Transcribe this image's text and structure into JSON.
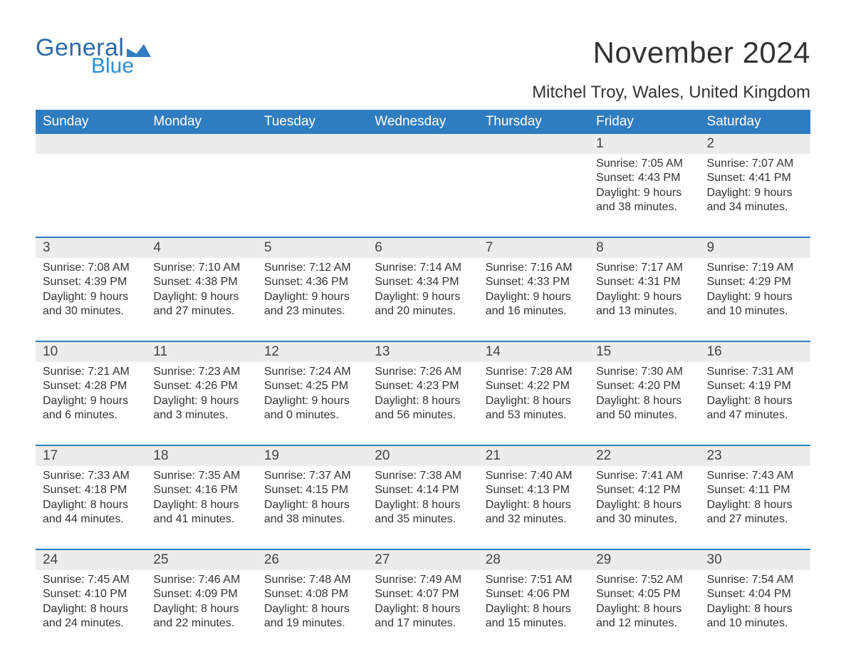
{
  "logo": {
    "word1": "General",
    "word2": "Blue",
    "mark_color": "#2f7cc0"
  },
  "title": "November 2024",
  "location": "Mitchel Troy, Wales, United Kingdom",
  "colors": {
    "header_bg": "#2f7cc0",
    "header_text": "#ffffff",
    "row_divider": "#2f7cc0",
    "daynum_bg": "#ececec",
    "text": "#333333",
    "page_bg": "#ffffff"
  },
  "fonts": {
    "title_size": 42,
    "location_size": 24,
    "dow_size": 19,
    "daynum_size": 19,
    "body_size": 16
  },
  "dow": [
    "Sunday",
    "Monday",
    "Tuesday",
    "Wednesday",
    "Thursday",
    "Friday",
    "Saturday"
  ],
  "labels": {
    "sunrise": "Sunrise: ",
    "sunset": "Sunset: ",
    "daylight": "Daylight: "
  },
  "weeks": [
    [
      null,
      null,
      null,
      null,
      null,
      {
        "n": "1",
        "sunrise": "7:05 AM",
        "sunset": "4:43 PM",
        "daylight_l1": "9 hours",
        "daylight_l2": "and 38 minutes."
      },
      {
        "n": "2",
        "sunrise": "7:07 AM",
        "sunset": "4:41 PM",
        "daylight_l1": "9 hours",
        "daylight_l2": "and 34 minutes."
      }
    ],
    [
      {
        "n": "3",
        "sunrise": "7:08 AM",
        "sunset": "4:39 PM",
        "daylight_l1": "9 hours",
        "daylight_l2": "and 30 minutes."
      },
      {
        "n": "4",
        "sunrise": "7:10 AM",
        "sunset": "4:38 PM",
        "daylight_l1": "9 hours",
        "daylight_l2": "and 27 minutes."
      },
      {
        "n": "5",
        "sunrise": "7:12 AM",
        "sunset": "4:36 PM",
        "daylight_l1": "9 hours",
        "daylight_l2": "and 23 minutes."
      },
      {
        "n": "6",
        "sunrise": "7:14 AM",
        "sunset": "4:34 PM",
        "daylight_l1": "9 hours",
        "daylight_l2": "and 20 minutes."
      },
      {
        "n": "7",
        "sunrise": "7:16 AM",
        "sunset": "4:33 PM",
        "daylight_l1": "9 hours",
        "daylight_l2": "and 16 minutes."
      },
      {
        "n": "8",
        "sunrise": "7:17 AM",
        "sunset": "4:31 PM",
        "daylight_l1": "9 hours",
        "daylight_l2": "and 13 minutes."
      },
      {
        "n": "9",
        "sunrise": "7:19 AM",
        "sunset": "4:29 PM",
        "daylight_l1": "9 hours",
        "daylight_l2": "and 10 minutes."
      }
    ],
    [
      {
        "n": "10",
        "sunrise": "7:21 AM",
        "sunset": "4:28 PM",
        "daylight_l1": "9 hours",
        "daylight_l2": "and 6 minutes."
      },
      {
        "n": "11",
        "sunrise": "7:23 AM",
        "sunset": "4:26 PM",
        "daylight_l1": "9 hours",
        "daylight_l2": "and 3 minutes."
      },
      {
        "n": "12",
        "sunrise": "7:24 AM",
        "sunset": "4:25 PM",
        "daylight_l1": "9 hours",
        "daylight_l2": "and 0 minutes."
      },
      {
        "n": "13",
        "sunrise": "7:26 AM",
        "sunset": "4:23 PM",
        "daylight_l1": "8 hours",
        "daylight_l2": "and 56 minutes."
      },
      {
        "n": "14",
        "sunrise": "7:28 AM",
        "sunset": "4:22 PM",
        "daylight_l1": "8 hours",
        "daylight_l2": "and 53 minutes."
      },
      {
        "n": "15",
        "sunrise": "7:30 AM",
        "sunset": "4:20 PM",
        "daylight_l1": "8 hours",
        "daylight_l2": "and 50 minutes."
      },
      {
        "n": "16",
        "sunrise": "7:31 AM",
        "sunset": "4:19 PM",
        "daylight_l1": "8 hours",
        "daylight_l2": "and 47 minutes."
      }
    ],
    [
      {
        "n": "17",
        "sunrise": "7:33 AM",
        "sunset": "4:18 PM",
        "daylight_l1": "8 hours",
        "daylight_l2": "and 44 minutes."
      },
      {
        "n": "18",
        "sunrise": "7:35 AM",
        "sunset": "4:16 PM",
        "daylight_l1": "8 hours",
        "daylight_l2": "and 41 minutes."
      },
      {
        "n": "19",
        "sunrise": "7:37 AM",
        "sunset": "4:15 PM",
        "daylight_l1": "8 hours",
        "daylight_l2": "and 38 minutes."
      },
      {
        "n": "20",
        "sunrise": "7:38 AM",
        "sunset": "4:14 PM",
        "daylight_l1": "8 hours",
        "daylight_l2": "and 35 minutes."
      },
      {
        "n": "21",
        "sunrise": "7:40 AM",
        "sunset": "4:13 PM",
        "daylight_l1": "8 hours",
        "daylight_l2": "and 32 minutes."
      },
      {
        "n": "22",
        "sunrise": "7:41 AM",
        "sunset": "4:12 PM",
        "daylight_l1": "8 hours",
        "daylight_l2": "and 30 minutes."
      },
      {
        "n": "23",
        "sunrise": "7:43 AM",
        "sunset": "4:11 PM",
        "daylight_l1": "8 hours",
        "daylight_l2": "and 27 minutes."
      }
    ],
    [
      {
        "n": "24",
        "sunrise": "7:45 AM",
        "sunset": "4:10 PM",
        "daylight_l1": "8 hours",
        "daylight_l2": "and 24 minutes."
      },
      {
        "n": "25",
        "sunrise": "7:46 AM",
        "sunset": "4:09 PM",
        "daylight_l1": "8 hours",
        "daylight_l2": "and 22 minutes."
      },
      {
        "n": "26",
        "sunrise": "7:48 AM",
        "sunset": "4:08 PM",
        "daylight_l1": "8 hours",
        "daylight_l2": "and 19 minutes."
      },
      {
        "n": "27",
        "sunrise": "7:49 AM",
        "sunset": "4:07 PM",
        "daylight_l1": "8 hours",
        "daylight_l2": "and 17 minutes."
      },
      {
        "n": "28",
        "sunrise": "7:51 AM",
        "sunset": "4:06 PM",
        "daylight_l1": "8 hours",
        "daylight_l2": "and 15 minutes."
      },
      {
        "n": "29",
        "sunrise": "7:52 AM",
        "sunset": "4:05 PM",
        "daylight_l1": "8 hours",
        "daylight_l2": "and 12 minutes."
      },
      {
        "n": "30",
        "sunrise": "7:54 AM",
        "sunset": "4:04 PM",
        "daylight_l1": "8 hours",
        "daylight_l2": "and 10 minutes."
      }
    ]
  ]
}
